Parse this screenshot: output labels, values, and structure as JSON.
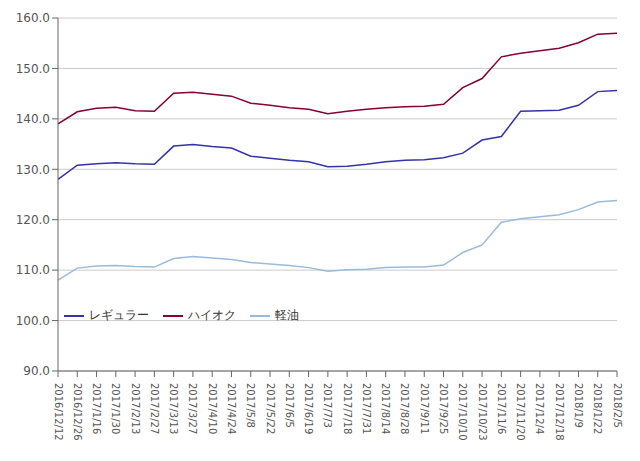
{
  "chart_data": {
    "type": "line",
    "categories": [
      "2016/12/12",
      "2016/12/26",
      "2017/1/16",
      "2017/1/30",
      "2017/2/13",
      "2017/2/27",
      "2017/3/13",
      "2017/3/27",
      "2017/4/10",
      "2017/4/24",
      "2017/5/8",
      "2017/5/22",
      "2017/6/5",
      "2017/6/19",
      "2017/7/3",
      "2017/7/18",
      "2017/7/31",
      "2017/8/14",
      "2017/8/28",
      "2017/9/11",
      "2017/9/25",
      "2017/10/10",
      "2017/10/23",
      "2017/11/6",
      "2017/11/20",
      "2017/12/4",
      "2017/12/18",
      "2018/1/9",
      "2018/1/22",
      "2018/2/5"
    ],
    "series": [
      {
        "name": "レギュラー",
        "color": "#3333aa",
        "values": [
          128.0,
          130.8,
          131.1,
          131.3,
          131.1,
          131.0,
          134.6,
          134.9,
          134.5,
          134.2,
          132.6,
          132.2,
          131.8,
          131.5,
          130.5,
          130.6,
          131.0,
          131.5,
          131.8,
          131.9,
          132.3,
          133.2,
          135.8,
          136.5,
          141.5,
          141.6,
          141.7,
          142.7,
          145.4,
          145.6
        ]
      },
      {
        "name": "ハイオク",
        "color": "#880033",
        "values": [
          139.0,
          141.4,
          142.1,
          142.3,
          141.6,
          141.5,
          145.1,
          145.3,
          144.9,
          144.5,
          143.1,
          142.7,
          142.2,
          141.9,
          141.0,
          141.5,
          141.9,
          142.2,
          142.4,
          142.5,
          142.9,
          146.2,
          148.0,
          152.3,
          153.0,
          153.5,
          154.0,
          155.1,
          156.8,
          157.0
        ]
      },
      {
        "name": "軽油",
        "color": "#99bbdd",
        "values": [
          108.0,
          110.4,
          110.8,
          110.9,
          110.7,
          110.6,
          112.3,
          112.7,
          112.4,
          112.1,
          111.5,
          111.2,
          110.9,
          110.5,
          109.8,
          110.1,
          110.2,
          110.5,
          110.6,
          110.6,
          111.0,
          113.5,
          115.0,
          119.5,
          120.2,
          120.6,
          121.0,
          122.0,
          123.5,
          123.8
        ]
      }
    ],
    "ylim": [
      90.0,
      160.0
    ],
    "yticks": [
      {
        "value": 90.0,
        "label": "90.0"
      },
      {
        "value": 100.0,
        "label": "100.0"
      },
      {
        "value": 110.0,
        "label": "110.0"
      },
      {
        "value": 120.0,
        "label": "120.0"
      },
      {
        "value": 130.0,
        "label": "130.0"
      },
      {
        "value": 140.0,
        "label": "140.0"
      },
      {
        "value": 150.0,
        "label": "150.0"
      },
      {
        "value": 160.0,
        "label": "160.0"
      }
    ],
    "grid": true,
    "legend": "lower left"
  }
}
